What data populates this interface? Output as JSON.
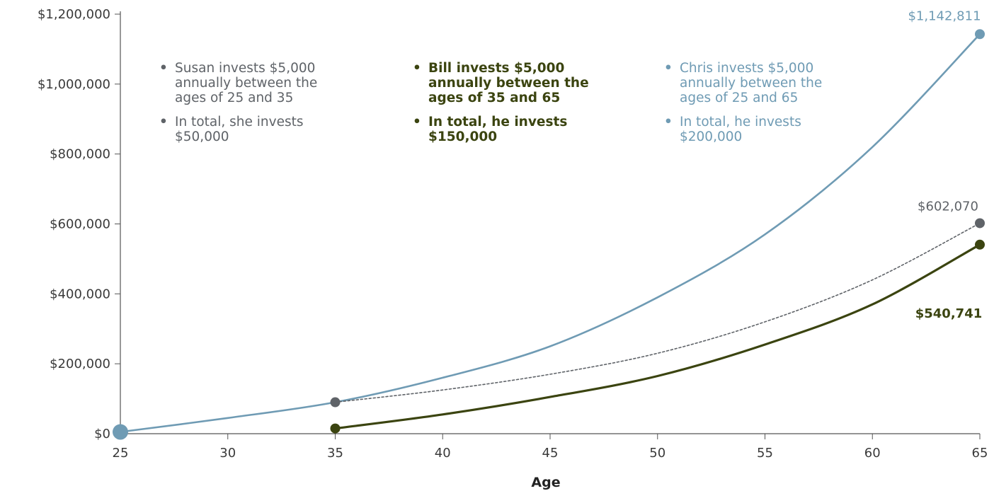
{
  "chart_data": {
    "type": "line",
    "title": "",
    "xlabel": "Age",
    "ylabel": "",
    "xlim": [
      25,
      65
    ],
    "ylim": [
      0,
      1200000
    ],
    "x_ticks": [
      "25",
      "30",
      "35",
      "40",
      "45",
      "50",
      "55",
      "60",
      "65"
    ],
    "y_ticks": [
      "$0",
      "$200,000",
      "$400,000",
      "$600,000",
      "$800,000",
      "$1,000,000",
      "$1,200,000"
    ],
    "grid": false,
    "colors": {
      "susan": "#5f6368",
      "bill": "#3b4410",
      "chris": "#6f9bb4"
    },
    "series": [
      {
        "key": "chris",
        "points": [
          {
            "x": 25,
            "y": 5000
          },
          {
            "x": 30,
            "y": 45000
          },
          {
            "x": 35,
            "y": 90000
          },
          {
            "x": 40,
            "y": 160000
          },
          {
            "x": 45,
            "y": 250000
          },
          {
            "x": 50,
            "y": 390000
          },
          {
            "x": 55,
            "y": 570000
          },
          {
            "x": 60,
            "y": 820000
          },
          {
            "x": 65,
            "y": 1142811
          }
        ],
        "end_label": "$1,142,811"
      },
      {
        "key": "susan",
        "points": [
          {
            "x": 35,
            "y": 90000
          },
          {
            "x": 40,
            "y": 125000
          },
          {
            "x": 45,
            "y": 170000
          },
          {
            "x": 50,
            "y": 230000
          },
          {
            "x": 55,
            "y": 320000
          },
          {
            "x": 60,
            "y": 440000
          },
          {
            "x": 65,
            "y": 602070
          }
        ],
        "end_label": "$602,070"
      },
      {
        "key": "bill",
        "points": [
          {
            "x": 35,
            "y": 15000
          },
          {
            "x": 40,
            "y": 55000
          },
          {
            "x": 45,
            "y": 105000
          },
          {
            "x": 50,
            "y": 165000
          },
          {
            "x": 55,
            "y": 255000
          },
          {
            "x": 60,
            "y": 370000
          },
          {
            "x": 65,
            "y": 540741
          }
        ],
        "end_label": "$540,741"
      }
    ],
    "annotations": [
      {
        "key": "susan",
        "lines": [
          [
            "•",
            "Susan invests $5,000",
            "annually between the",
            "ages of 25 and 35"
          ],
          [
            "•",
            "In total, she invests",
            "$50,000"
          ]
        ]
      },
      {
        "key": "bill",
        "lines": [
          [
            "•",
            "Bill invests $5,000",
            "annually between the",
            "ages of 35 and 65"
          ],
          [
            "•",
            "In total, he invests",
            "$150,000"
          ]
        ]
      },
      {
        "key": "chris",
        "lines": [
          [
            "•",
            "Chris invests $5,000",
            "annually between the",
            "ages of 25 and 65"
          ],
          [
            "•",
            "In total, he invests",
            "$200,000"
          ]
        ]
      }
    ]
  }
}
